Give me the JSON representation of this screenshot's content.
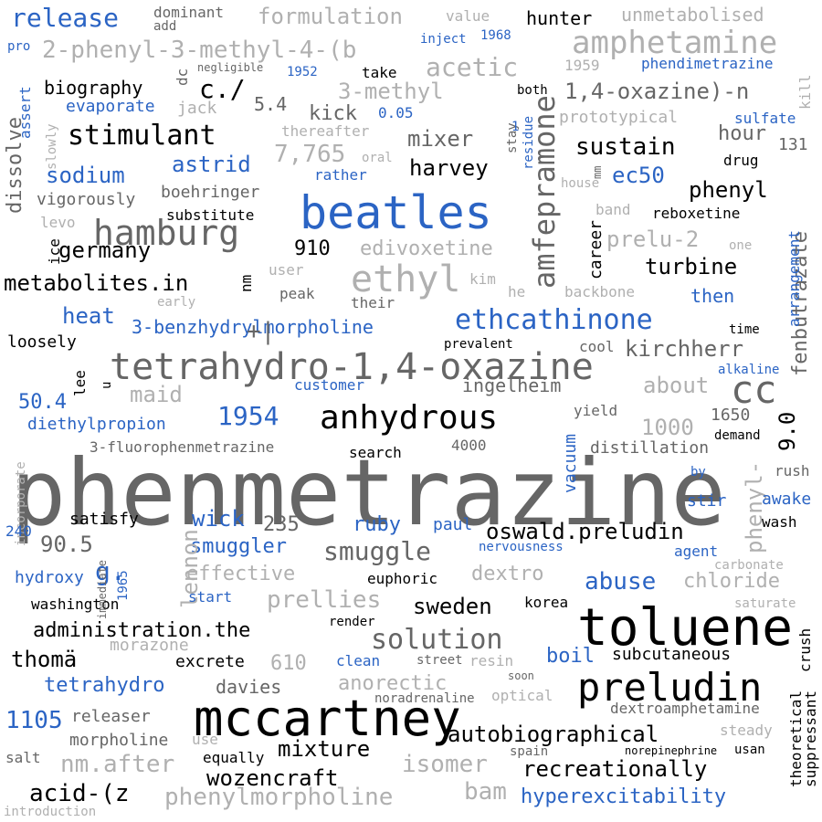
{
  "palette": {
    "black": "#000000",
    "dark_gray": "#666666",
    "light_gray": "#b0b0b0",
    "blue": "#2b64c4"
  },
  "words": [
    {
      "text": "phenmetrazine",
      "color": "dark_gray"
    },
    {
      "text": "toluene",
      "color": "black"
    },
    {
      "text": "mccartney",
      "color": "black"
    },
    {
      "text": "preludin",
      "color": "black"
    },
    {
      "text": "beatles",
      "color": "blue"
    },
    {
      "text": "tetrahydro-1,4-oxazine",
      "color": "dark_gray"
    },
    {
      "text": "anhydrous",
      "color": "black"
    },
    {
      "text": "hamburg",
      "color": "dark_gray"
    },
    {
      "text": "ethyl",
      "color": "light_gray"
    },
    {
      "text": "amfepramone",
      "color": "dark_gray"
    },
    {
      "text": "ethcathinone",
      "color": "blue"
    },
    {
      "text": "amphetamine",
      "color": "light_gray"
    },
    {
      "text": "release",
      "color": "blue"
    },
    {
      "text": "stimulant",
      "color": "black"
    },
    {
      "text": "cc",
      "color": "dark_gray"
    },
    {
      "text": "2-phenyl-3-methyl-4-(b",
      "color": "light_gray"
    },
    {
      "text": "formulation",
      "color": "light_gray"
    },
    {
      "text": "solution",
      "color": "dark_gray"
    },
    {
      "text": "autobiographical",
      "color": "black"
    },
    {
      "text": "germany",
      "color": "black"
    },
    {
      "text": "metabolites.in",
      "color": "black"
    },
    {
      "text": "wozencraft",
      "color": "black"
    },
    {
      "text": "recreationally",
      "color": "black"
    },
    {
      "text": "phenylmorpholine",
      "color": "light_gray"
    },
    {
      "text": "hyperexcitability",
      "color": "blue"
    },
    {
      "text": "acid-(z",
      "color": "black"
    },
    {
      "text": "isomer",
      "color": "light_gray"
    },
    {
      "text": "oswald.preludin",
      "color": "black"
    },
    {
      "text": "smuggle",
      "color": "dark_gray"
    },
    {
      "text": "abuse",
      "color": "blue"
    },
    {
      "text": "sweden",
      "color": "black"
    },
    {
      "text": "prellies",
      "color": "light_gray"
    },
    {
      "text": "administration.the",
      "color": "black"
    },
    {
      "text": "thomä",
      "color": "black"
    },
    {
      "text": "tetrahydro",
      "color": "blue"
    },
    {
      "text": "kirchherr",
      "color": "dark_gray"
    },
    {
      "text": "sustain",
      "color": "black"
    },
    {
      "text": "acetic",
      "color": "light_gray"
    },
    {
      "text": "3-methyl",
      "color": "light_gray"
    },
    {
      "text": "1,4-oxazine)-n",
      "color": "dark_gray"
    },
    {
      "text": "sodium",
      "color": "blue"
    },
    {
      "text": "astrid",
      "color": "blue"
    },
    {
      "text": "7,765",
      "color": "light_gray"
    },
    {
      "text": "harvey",
      "color": "black"
    },
    {
      "text": "mixer",
      "color": "dark_gray"
    },
    {
      "text": "ec50",
      "color": "blue"
    },
    {
      "text": "phenyl",
      "color": "black"
    },
    {
      "text": "turbine",
      "color": "black"
    },
    {
      "text": "prelu-2",
      "color": "light_gray"
    },
    {
      "text": "edivoxetine",
      "color": "light_gray"
    },
    {
      "text": "heat",
      "color": "blue"
    },
    {
      "text": "3-benzhydrylmorpholine",
      "color": "blue"
    },
    {
      "text": "50.4",
      "color": "blue"
    },
    {
      "text": "diethylpropion",
      "color": "blue"
    },
    {
      "text": "1954",
      "color": "blue"
    },
    {
      "text": "maid",
      "color": "light_gray"
    },
    {
      "text": "ingelheim",
      "color": "dark_gray"
    },
    {
      "text": "about",
      "color": "light_gray"
    },
    {
      "text": "1000",
      "color": "light_gray"
    },
    {
      "text": "1650",
      "color": "dark_gray"
    },
    {
      "text": "9.0",
      "color": "black"
    },
    {
      "text": "fenbutrazate",
      "color": "dark_gray"
    },
    {
      "text": "phenyl-",
      "color": "light_gray"
    },
    {
      "text": "distillation",
      "color": "dark_gray"
    },
    {
      "text": "vacuum",
      "color": "blue"
    },
    {
      "text": "4000",
      "color": "dark_gray"
    },
    {
      "text": "search",
      "color": "black"
    },
    {
      "text": "3-fluorophenmetrazine",
      "color": "dark_gray"
    },
    {
      "text": "wick",
      "color": "blue"
    },
    {
      "text": "235",
      "color": "dark_gray"
    },
    {
      "text": "90.5",
      "color": "dark_gray"
    },
    {
      "text": "satisfy",
      "color": "black"
    },
    {
      "text": "smuggler",
      "color": "blue"
    },
    {
      "text": "lennon",
      "color": "light_gray"
    },
    {
      "text": "effective",
      "color": "light_gray"
    },
    {
      "text": "ruby",
      "color": "blue"
    },
    {
      "text": "paul",
      "color": "blue"
    },
    {
      "text": "dextro",
      "color": "light_gray"
    },
    {
      "text": "chloride",
      "color": "light_gray"
    },
    {
      "text": "g.",
      "color": "blue"
    },
    {
      "text": "hydroxy",
      "color": "blue"
    },
    {
      "text": "washington",
      "color": "black"
    },
    {
      "text": "start",
      "color": "blue"
    },
    {
      "text": "euphoric",
      "color": "black"
    },
    {
      "text": "korea",
      "color": "black"
    },
    {
      "text": "morazone",
      "color": "light_gray"
    },
    {
      "text": "excrete",
      "color": "black"
    },
    {
      "text": "610",
      "color": "light_gray"
    },
    {
      "text": "clean",
      "color": "blue"
    },
    {
      "text": "boil",
      "color": "blue"
    },
    {
      "text": "subcutaneous",
      "color": "black"
    },
    {
      "text": "anorectic",
      "color": "light_gray"
    },
    {
      "text": "davies",
      "color": "dark_gray"
    },
    {
      "text": "1105",
      "color": "blue"
    },
    {
      "text": "releaser",
      "color": "dark_gray"
    },
    {
      "text": "morpholine",
      "color": "dark_gray"
    },
    {
      "text": "use",
      "color": "light_gray"
    },
    {
      "text": "nm.after",
      "color": "light_gray"
    },
    {
      "text": "mixture",
      "color": "black"
    },
    {
      "text": "equally",
      "color": "black"
    },
    {
      "text": "bam",
      "color": "light_gray"
    },
    {
      "text": "salt",
      "color": "dark_gray"
    },
    {
      "text": "introduction",
      "color": "light_gray"
    },
    {
      "text": "biography",
      "color": "black"
    },
    {
      "text": "c./",
      "color": "black"
    },
    {
      "text": "5.4",
      "color": "dark_gray"
    },
    {
      "text": "kick",
      "color": "dark_gray"
    },
    {
      "text": "evaporate",
      "color": "blue"
    },
    {
      "text": "jack",
      "color": "light_gray"
    },
    {
      "text": "dissolve",
      "color": "dark_gray"
    },
    {
      "text": "assert",
      "color": "blue"
    },
    {
      "text": "vigorously",
      "color": "dark_gray"
    },
    {
      "text": "boehringer",
      "color": "dark_gray"
    },
    {
      "text": "levo",
      "color": "light_gray"
    },
    {
      "text": "substitute",
      "color": "black"
    },
    {
      "text": "910",
      "color": "black"
    },
    {
      "text": "user",
      "color": "light_gray"
    },
    {
      "text": "peak",
      "color": "dark_gray"
    },
    {
      "text": "their",
      "color": "dark_gray"
    },
    {
      "text": "nm",
      "color": "black"
    },
    {
      "text": "kim",
      "color": "light_gray"
    },
    {
      "text": "he",
      "color": "light_gray"
    },
    {
      "text": "backbone",
      "color": "light_gray"
    },
    {
      "text": "then",
      "color": "blue"
    },
    {
      "text": "loosely",
      "color": "black"
    },
    {
      "text": "prevalent",
      "color": "black"
    },
    {
      "text": "cool",
      "color": "dark_gray"
    },
    {
      "text": "time",
      "color": "black"
    },
    {
      "text": "customer",
      "color": "blue"
    },
    {
      "text": "alkaline",
      "color": "blue"
    },
    {
      "text": "yield",
      "color": "dark_gray"
    },
    {
      "text": "demand",
      "color": "black"
    },
    {
      "text": "by",
      "color": "blue"
    },
    {
      "text": "rush",
      "color": "dark_gray"
    },
    {
      "text": "stir",
      "color": "blue"
    },
    {
      "text": "awake",
      "color": "blue"
    },
    {
      "text": "wash",
      "color": "black"
    },
    {
      "text": "agent",
      "color": "blue"
    },
    {
      "text": "nervousness",
      "color": "blue"
    },
    {
      "text": "carbonate",
      "color": "light_gray"
    },
    {
      "text": "saturate",
      "color": "light_gray"
    },
    {
      "text": "render",
      "color": "black"
    },
    {
      "text": "street",
      "color": "dark_gray"
    },
    {
      "text": "resin",
      "color": "light_gray"
    },
    {
      "text": "soon",
      "color": "dark_gray"
    },
    {
      "text": "optical",
      "color": "light_gray"
    },
    {
      "text": "noradrenaline",
      "color": "dark_gray"
    },
    {
      "text": "dextroamphetamine",
      "color": "dark_gray"
    },
    {
      "text": "theoretical",
      "color": "black"
    },
    {
      "text": "suppressant",
      "color": "black"
    },
    {
      "text": "crush",
      "color": "black"
    },
    {
      "text": "steady",
      "color": "light_gray"
    },
    {
      "text": "spain",
      "color": "dark_gray"
    },
    {
      "text": "norepinephrine",
      "color": "black"
    },
    {
      "text": "usan",
      "color": "black"
    },
    {
      "text": "hunter",
      "color": "black"
    },
    {
      "text": "unmetabolised",
      "color": "light_gray"
    },
    {
      "text": "value",
      "color": "light_gray"
    },
    {
      "text": "dominant",
      "color": "dark_gray"
    },
    {
      "text": "add",
      "color": "dark_gray"
    },
    {
      "text": "inject",
      "color": "blue"
    },
    {
      "text": "1968",
      "color": "blue"
    },
    {
      "text": "pro",
      "color": "blue"
    },
    {
      "text": "negligible",
      "color": "dark_gray"
    },
    {
      "text": "1952",
      "color": "blue"
    },
    {
      "text": "dc",
      "color": "dark_gray"
    },
    {
      "text": "take",
      "color": "black"
    },
    {
      "text": "1959",
      "color": "light_gray"
    },
    {
      "text": "phendimetrazine",
      "color": "blue"
    },
    {
      "text": "both",
      "color": "black"
    },
    {
      "text": "kill",
      "color": "light_gray"
    },
    {
      "text": "prototypical",
      "color": "light_gray"
    },
    {
      "text": "0.05",
      "color": "blue"
    },
    {
      "text": "sulfate",
      "color": "blue"
    },
    {
      "text": "hour",
      "color": "dark_gray"
    },
    {
      "text": "131",
      "color": "dark_gray"
    },
    {
      "text": "drug",
      "color": "black"
    },
    {
      "text": "thereafter",
      "color": "light_gray"
    },
    {
      "text": "oral",
      "color": "light_gray"
    },
    {
      "text": "rather",
      "color": "blue"
    },
    {
      "text": "slowly",
      "color": "light_gray"
    },
    {
      "text": "stay",
      "color": "dark_gray"
    },
    {
      "text": "residue",
      "color": "blue"
    },
    {
      "text": "mm",
      "color": "dark_gray"
    },
    {
      "text": "house",
      "color": "light_gray"
    },
    {
      "text": "band",
      "color": "light_gray"
    },
    {
      "text": "reboxetine",
      "color": "black"
    },
    {
      "text": "arrangement",
      "color": "blue"
    },
    {
      "text": "one",
      "color": "light_gray"
    },
    {
      "text": "career",
      "color": "black"
    },
    {
      "text": "early",
      "color": "light_gray"
    },
    {
      "text": "ice",
      "color": "black"
    },
    {
      "text": "lee",
      "color": "black"
    },
    {
      "text": "u",
      "color": "black"
    },
    {
      "text": "incorporate",
      "color": "light_gray"
    },
    {
      "text": "240",
      "color": "blue"
    },
    {
      "text": "1965",
      "color": "blue"
    },
    {
      "text": "immediate",
      "color": "dark_gray"
    },
    {
      "text": "+|",
      "color": "dark_gray"
    },
    {
      "text": "1",
      "color": "blue"
    }
  ]
}
